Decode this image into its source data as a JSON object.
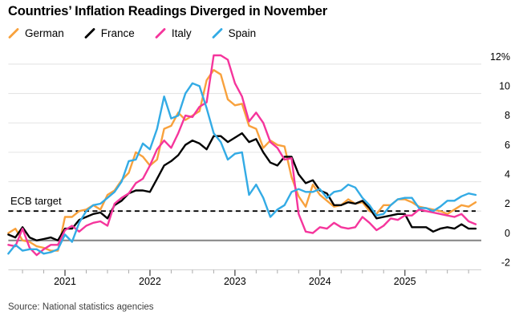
{
  "title": "Countries’ Inflation Readings Diverged in November",
  "annotation": {
    "label": "ECB target",
    "value": 2
  },
  "source": "Source: National statistics agencies",
  "colors": {
    "grid": "#e4e4e4",
    "zero_line": "#8a8a8a",
    "axis_line": "#d2d2d2",
    "minor_tick": "#ababab",
    "major_tick": "#6e6e6e",
    "target_line": "#000000"
  },
  "chart_data": {
    "type": "line",
    "title": "Countries’ Inflation Readings Diverged in November",
    "x_start": "2020-05",
    "x_end": "2025-11",
    "x_unit": "month",
    "x_tick_labels": [
      "2021",
      "2022",
      "2023",
      "2024",
      "2025"
    ],
    "y_tick_values": [
      12,
      10,
      8,
      6,
      4,
      2,
      0,
      -2
    ],
    "y_tick_labels": [
      "12%",
      "10",
      "8",
      "6",
      "4",
      "2",
      "0",
      "-2"
    ],
    "ylim": [
      -2,
      12.8
    ],
    "grid": true,
    "legend_position": "top-left",
    "target_annotation": {
      "label": "ECB target",
      "value": 2
    },
    "series": [
      {
        "name": "German",
        "color": "#F8A13C",
        "values": [
          0.5,
          0.8,
          0.0,
          -0.1,
          -0.4,
          -0.5,
          -0.7,
          -0.7,
          1.6,
          1.6,
          2.0,
          2.1,
          2.4,
          2.1,
          3.1,
          3.4,
          4.1,
          4.6,
          6.0,
          5.7,
          5.1,
          5.5,
          7.6,
          7.8,
          8.7,
          8.2,
          8.5,
          8.8,
          10.9,
          11.6,
          11.3,
          9.6,
          9.2,
          9.3,
          7.8,
          7.6,
          6.3,
          6.8,
          6.5,
          6.4,
          4.3,
          3.0,
          2.3,
          3.8,
          3.1,
          2.7,
          2.3,
          2.4,
          2.8,
          2.5,
          2.6,
          2.0,
          1.8,
          2.4,
          2.4,
          2.8,
          2.8,
          2.6,
          2.3,
          2.2,
          2.1,
          2.0,
          1.8,
          2.1,
          2.4,
          2.3,
          2.6
        ]
      },
      {
        "name": "France",
        "color": "#000000",
        "values": [
          0.4,
          0.2,
          0.9,
          0.2,
          0.0,
          0.1,
          0.2,
          0.0,
          0.8,
          0.8,
          1.4,
          1.6,
          1.8,
          1.9,
          1.5,
          2.4,
          2.7,
          3.2,
          3.4,
          3.4,
          3.3,
          4.2,
          5.1,
          5.4,
          5.8,
          6.5,
          6.8,
          6.6,
          6.2,
          7.1,
          7.1,
          6.7,
          7.0,
          7.3,
          6.7,
          6.9,
          6.0,
          5.3,
          5.1,
          5.7,
          5.7,
          4.5,
          3.9,
          4.1,
          3.4,
          3.2,
          2.4,
          2.4,
          2.6,
          2.5,
          2.7,
          2.2,
          1.5,
          1.6,
          1.7,
          1.8,
          1.8,
          0.9,
          0.9,
          0.9,
          0.6,
          0.8,
          0.9,
          0.8,
          1.1,
          0.8,
          0.8
        ]
      },
      {
        "name": "Italy",
        "color": "#F5359C",
        "values": [
          -0.3,
          -0.4,
          0.8,
          -0.5,
          -1.0,
          -0.6,
          -0.3,
          -0.3,
          0.7,
          1.0,
          0.6,
          1.0,
          1.2,
          1.3,
          1.0,
          2.5,
          2.9,
          3.2,
          3.9,
          4.2,
          5.1,
          6.2,
          6.8,
          6.3,
          7.3,
          8.5,
          8.4,
          9.1,
          9.4,
          12.6,
          12.6,
          12.3,
          10.7,
          9.8,
          8.1,
          8.7,
          8.0,
          6.7,
          6.3,
          5.5,
          5.6,
          1.8,
          0.6,
          0.5,
          0.9,
          0.8,
          1.2,
          0.9,
          0.8,
          0.9,
          1.6,
          1.2,
          0.7,
          1.0,
          1.5,
          1.4,
          1.7,
          1.7,
          2.1,
          2.0,
          1.9,
          1.8,
          1.7,
          1.6,
          1.8,
          1.3,
          1.1
        ]
      },
      {
        "name": "Spain",
        "color": "#33ABE5",
        "values": [
          -0.9,
          -0.3,
          -0.7,
          -0.6,
          -0.6,
          -0.9,
          -0.8,
          -0.6,
          0.4,
          -0.1,
          1.2,
          2.0,
          2.4,
          2.5,
          2.9,
          3.3,
          4.0,
          5.4,
          5.5,
          6.6,
          6.2,
          7.6,
          9.8,
          8.3,
          8.5,
          10.0,
          10.7,
          10.5,
          9.0,
          7.3,
          6.7,
          5.5,
          5.9,
          6.0,
          3.1,
          3.8,
          2.9,
          1.6,
          2.1,
          2.4,
          3.3,
          3.5,
          3.3,
          3.3,
          3.5,
          2.9,
          3.3,
          3.4,
          3.8,
          3.6,
          2.9,
          2.4,
          1.7,
          1.8,
          2.4,
          2.8,
          2.9,
          2.9,
          2.2,
          2.2,
          2.0,
          2.3,
          2.7,
          2.7,
          3.0,
          3.2,
          3.1
        ]
      }
    ]
  }
}
